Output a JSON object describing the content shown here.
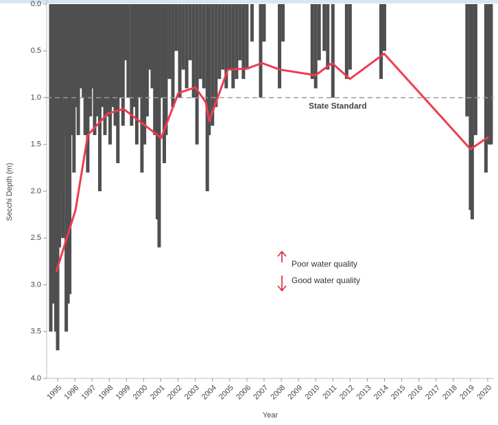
{
  "chart_data": {
    "type": "bar-line",
    "y_label": "Secchi Depth (m)",
    "x_label": "Year",
    "ylim": [
      0,
      4
    ],
    "y_inverted": true,
    "yticks": [
      {
        "value": 0,
        "label": "0.0"
      },
      0.5,
      {
        "value": 1,
        "label": "1.0"
      },
      1.5,
      {
        "value": 2,
        "label": "2.0"
      },
      2.5,
      {
        "value": 3,
        "label": "3.0"
      },
      3.5,
      {
        "value": 4,
        "label": "4.0"
      }
    ],
    "xlim": [
      1994.36,
      2020.36
    ],
    "xticks": [
      1995,
      1996,
      1997,
      1998,
      1999,
      2000,
      2001,
      2002,
      2003,
      2004,
      2005,
      2006,
      2007,
      2008,
      2009,
      2010,
      2011,
      2012,
      2013,
      2014,
      2015,
      2016,
      2017,
      2018,
      2019,
      2020
    ],
    "bars": {
      "color": "#4f4f4f",
      "x": [
        1994.6,
        1994.7,
        1994.8,
        1994.9,
        1995.0,
        1995.1,
        1995.2,
        1995.3,
        1995.45,
        1995.5,
        1995.6,
        1995.7,
        1995.8,
        1995.95,
        1996.1,
        1996.2,
        1996.35,
        1996.5,
        1996.6,
        1996.75,
        1996.9,
        1997.0,
        1997.15,
        1997.3,
        1997.45,
        1997.6,
        1997.75,
        1997.9,
        1998.05,
        1998.2,
        1998.35,
        1998.5,
        1998.65,
        1998.8,
        1998.95,
        1999.1,
        1999.3,
        1999.45,
        1999.6,
        1999.75,
        1999.9,
        2000.05,
        2000.2,
        2000.35,
        2000.5,
        2000.65,
        2000.8,
        2000.9,
        2001.1,
        2001.2,
        2001.3,
        2001.5,
        2001.7,
        2001.9,
        2002.1,
        2002.3,
        2002.5,
        2002.7,
        2002.9,
        2003.1,
        2003.3,
        2003.5,
        2003.7,
        2003.8,
        2004.0,
        2004.2,
        2004.4,
        2004.6,
        2004.8,
        2005.0,
        2005.2,
        2005.4,
        2005.6,
        2005.8,
        2006.0,
        2006.3,
        2006.8,
        2007.0,
        2007.9,
        2008.1,
        2009.8,
        2010.0,
        2010.2,
        2010.5,
        2010.7,
        2011.0,
        2011.8,
        2012.0,
        2013.8,
        2014.0,
        2018.8,
        2019.0,
        2019.1,
        2019.3,
        2019.9,
        2020.1,
        2020.2
      ],
      "values": [
        3.5,
        2.9,
        3.2,
        3.5,
        3.7,
        2.6,
        2.0,
        2.5,
        1.4,
        3.5,
        3.2,
        3.1,
        1.4,
        1.8,
        1.1,
        1.4,
        0.9,
        1.0,
        1.4,
        1.8,
        1.2,
        0.9,
        1.4,
        1.2,
        2.0,
        1.1,
        1.4,
        1.2,
        1.5,
        1.1,
        1.3,
        1.7,
        1.0,
        1.3,
        0.6,
        1.0,
        1.3,
        1.1,
        1.5,
        1.0,
        1.8,
        1.5,
        1.2,
        0.7,
        0.9,
        1.4,
        2.3,
        2.6,
        1.0,
        1.7,
        1.4,
        0.8,
        1.1,
        0.5,
        1.0,
        0.7,
        0.9,
        0.6,
        1.0,
        1.5,
        0.8,
        0.9,
        2.0,
        1.4,
        1.3,
        1.1,
        0.8,
        0.7,
        0.9,
        0.7,
        0.9,
        0.8,
        0.6,
        0.8,
        0.7,
        0.4,
        1.0,
        0.4,
        0.9,
        0.4,
        0.8,
        0.9,
        0.6,
        0.5,
        0.7,
        1.0,
        0.8,
        0.7,
        0.8,
        0.5,
        1.2,
        2.2,
        2.3,
        1.4,
        1.8,
        1.5,
        1.5
      ]
    },
    "line": {
      "color": "#ef3b50",
      "x": [
        1994.92,
        1996.04,
        1996.75,
        1997.91,
        1998.83,
        2001.02,
        2002.02,
        2003.01,
        2003.61,
        2003.81,
        2004.89,
        2006.0,
        2006.88,
        2007.92,
        2010.0,
        2010.95,
        2011.99,
        2013.98,
        2019.0,
        2020.04
      ],
      "values": [
        2.86,
        2.2,
        1.4,
        1.17,
        1.12,
        1.43,
        0.95,
        0.89,
        1.05,
        1.25,
        0.7,
        0.69,
        0.63,
        0.7,
        0.76,
        0.63,
        0.8,
        0.53,
        1.55,
        1.42
      ]
    },
    "reference_line": {
      "value": 1.0,
      "label": "State Standard"
    },
    "annotations": [
      "Poor water quality",
      "Good water quality"
    ]
  }
}
